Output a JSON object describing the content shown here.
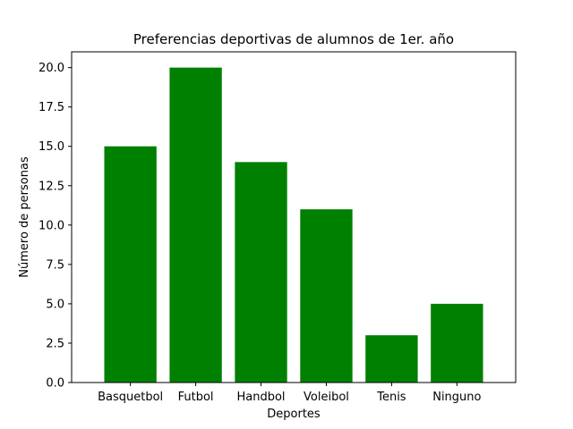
{
  "chart_data": {
    "type": "bar",
    "title": "Preferencias deportivas de alumnos de 1er. año",
    "xlabel": "Deportes",
    "ylabel": "Número de personas",
    "categories": [
      "Basquetbol",
      "Futbol",
      "Handbol",
      "Voleibol",
      "Tenis",
      "Ninguno"
    ],
    "values": [
      15,
      20,
      14,
      11,
      3,
      5
    ],
    "ylim": [
      0,
      21
    ],
    "yticks": [
      "0.0",
      "2.5",
      "5.0",
      "7.5",
      "10.0",
      "12.5",
      "15.0",
      "17.5",
      "20.0"
    ],
    "bar_color": "#008000",
    "grid": false,
    "legend": "none"
  }
}
